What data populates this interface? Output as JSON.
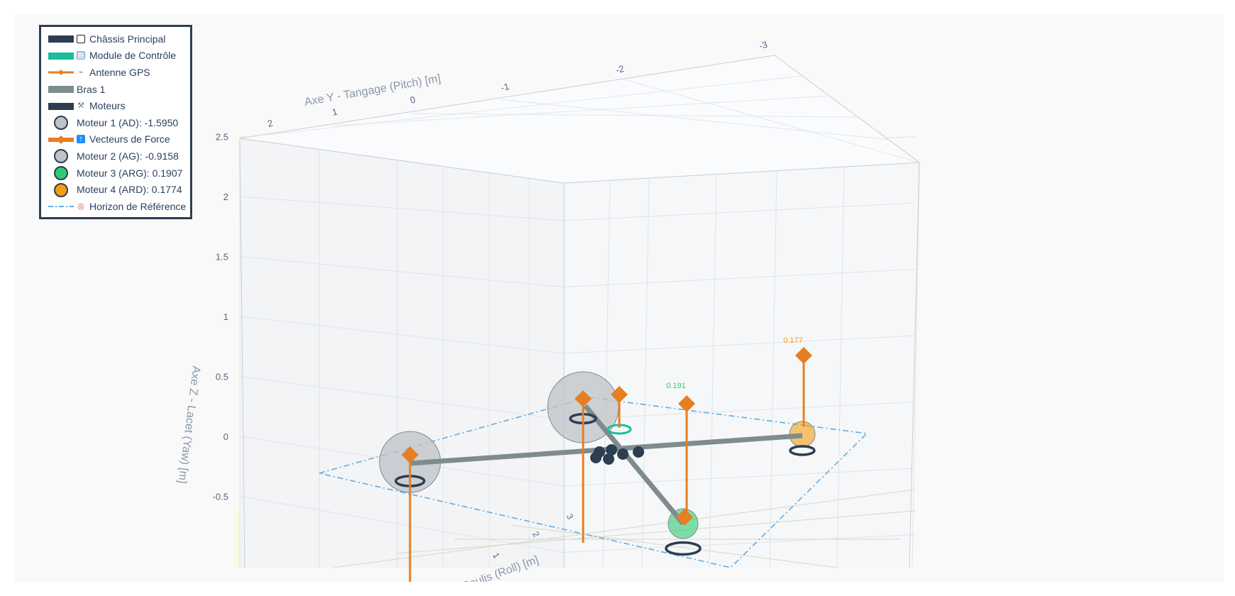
{
  "chart_data": {
    "type": "scatter3d",
    "title": "",
    "axes": {
      "x": {
        "label": "Axe X - Roulis (Roll) [m]",
        "ticks": [
          "3",
          "2",
          "1"
        ]
      },
      "y": {
        "label": "Axe Y - Tangage (Pitch) [m]",
        "ticks": [
          "-3",
          "-2",
          "-1",
          "0",
          "1",
          "2"
        ]
      },
      "z": {
        "label": "Axe Z - Lacet (Yaw) [m]",
        "ticks": [
          "2.5",
          "2",
          "1.5",
          "1",
          "0.5",
          "0",
          "-0.5"
        ],
        "range": [
          -0.8,
          2.5
        ]
      }
    },
    "motors": [
      {
        "name": "Moteur 1 (AD)",
        "thrust": -1.595,
        "color": "#bdc3c7"
      },
      {
        "name": "Moteur 2 (AG)",
        "thrust": -0.9158,
        "color": "#bdc3c7"
      },
      {
        "name": "Moteur 3 (ARG)",
        "thrust": 0.1907,
        "color": "#2ecc71",
        "annotation": "0.191"
      },
      {
        "name": "Moteur 4 (ARD)",
        "thrust": 0.1774,
        "color": "#f39c12",
        "annotation": "0.177"
      }
    ],
    "legend": {
      "placement": "top-left",
      "items": [
        {
          "label": "Châssis Principal",
          "icon": "square-icon",
          "symbol": "bar",
          "color": "#2c3e50"
        },
        {
          "label": "Module de Contrôle",
          "icon": "chip-icon",
          "symbol": "bar",
          "color": "#1abc9c"
        },
        {
          "label": "Antenne GPS",
          "icon": "satellite-dish-icon",
          "symbol": "line-diamond",
          "color": "#e67e22"
        },
        {
          "label": "Bras 1",
          "icon": "",
          "symbol": "bar",
          "color": "#7f8c8d"
        },
        {
          "label": "Moteurs",
          "icon": "wrench-icon",
          "symbol": "bar",
          "color": "#2c3e50"
        },
        {
          "label": "Moteur 1 (AD): -1.5950",
          "icon": "",
          "symbol": "circle",
          "color": "#bdc3c7"
        },
        {
          "label": "Vecteurs de Force",
          "icon": "up-arrow-icon",
          "symbol": "thick-line-diamond",
          "color": "#e67e22"
        },
        {
          "label": "Moteur 2 (AG): -0.9158",
          "icon": "",
          "symbol": "circle",
          "color": "#bdc3c7"
        },
        {
          "label": "Moteur 3 (ARG): 0.1907",
          "icon": "",
          "symbol": "circle",
          "color": "#2ecc71"
        },
        {
          "label": "Moteur 4 (ARD): 0.1774",
          "icon": "",
          "symbol": "circle",
          "color": "#f39c12"
        },
        {
          "label": "Horizon de Référence",
          "icon": "target-icon",
          "symbol": "dashdot",
          "color": "#5dade2"
        }
      ]
    },
    "colors": {
      "frame": "#2c3e50",
      "arm": "#7f8c8d",
      "force": "#e67e22",
      "control": "#1abc9c",
      "horizon": "#5dade2",
      "ground": "#fbf8e4"
    }
  }
}
